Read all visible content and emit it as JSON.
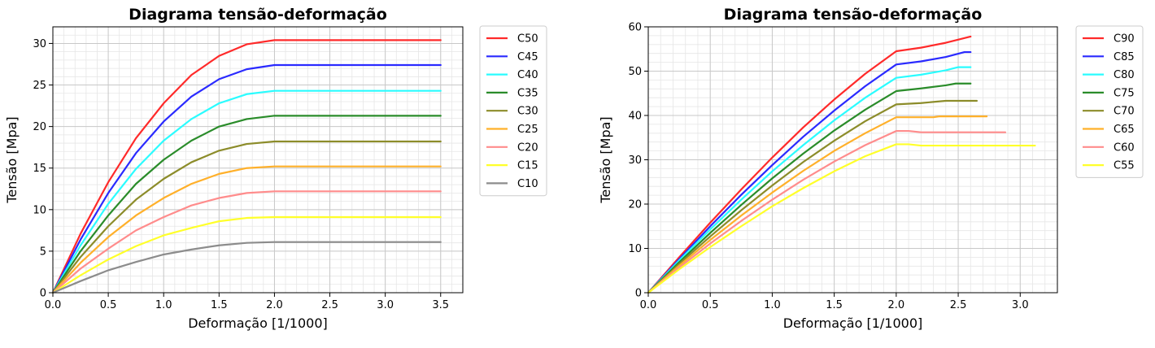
{
  "chart_data": [
    {
      "type": "line",
      "title": "Diagrama tensão-deformação",
      "xlabel": "Deformação [1/1000]",
      "ylabel": "Tensão [Mpa]",
      "xlim": [
        0,
        3.7
      ],
      "ylim": [
        0,
        32
      ],
      "xticks": [
        0.0,
        0.5,
        1.0,
        1.5,
        2.0,
        2.5,
        3.0,
        3.5
      ],
      "xtick_labels": [
        "0.0",
        "0.5",
        "1.0",
        "1.5",
        "2.0",
        "2.5",
        "3.0",
        "3.5"
      ],
      "yticks": [
        0,
        5,
        10,
        15,
        20,
        25,
        30
      ],
      "ytick_labels": [
        "0",
        "5",
        "10",
        "15",
        "20",
        "25",
        "30"
      ],
      "grid": "major and minor",
      "legend_position": "outside-right",
      "series": [
        {
          "name": "C50",
          "color": "#ff2a2a",
          "x": [
            0,
            0.25,
            0.5,
            0.75,
            1.0,
            1.25,
            1.5,
            1.75,
            2.0,
            3.5
          ],
          "y": [
            0,
            7.1,
            13.3,
            18.6,
            22.8,
            26.2,
            28.5,
            29.9,
            30.4,
            30.4
          ]
        },
        {
          "name": "C45",
          "color": "#2a2aff",
          "x": [
            0,
            0.25,
            0.5,
            0.75,
            1.0,
            1.25,
            1.5,
            1.75,
            2.0,
            3.5
          ],
          "y": [
            0,
            6.4,
            12.0,
            16.8,
            20.6,
            23.6,
            25.7,
            26.9,
            27.4,
            27.4
          ]
        },
        {
          "name": "C40",
          "color": "#2afcff",
          "x": [
            0,
            0.25,
            0.5,
            0.75,
            1.0,
            1.25,
            1.5,
            1.75,
            2.0,
            3.5
          ],
          "y": [
            0,
            5.7,
            10.7,
            14.9,
            18.3,
            20.9,
            22.8,
            23.9,
            24.3,
            24.3
          ]
        },
        {
          "name": "C35",
          "color": "#2a8c2a",
          "x": [
            0,
            0.25,
            0.5,
            0.75,
            1.0,
            1.25,
            1.5,
            1.75,
            2.0,
            3.5
          ],
          "y": [
            0,
            5.0,
            9.3,
            13.1,
            16.0,
            18.3,
            20.0,
            20.9,
            21.3,
            21.3
          ]
        },
        {
          "name": "C30",
          "color": "#8c8c2a",
          "x": [
            0,
            0.25,
            0.5,
            0.75,
            1.0,
            1.25,
            1.5,
            1.75,
            2.0,
            3.5
          ],
          "y": [
            0,
            4.3,
            8.0,
            11.2,
            13.7,
            15.7,
            17.1,
            17.9,
            18.2,
            18.2
          ]
        },
        {
          "name": "C25",
          "color": "#ffb02a",
          "x": [
            0,
            0.25,
            0.5,
            0.75,
            1.0,
            1.25,
            1.5,
            1.75,
            2.0,
            3.5
          ],
          "y": [
            0,
            3.6,
            6.7,
            9.3,
            11.4,
            13.1,
            14.3,
            15.0,
            15.2,
            15.2
          ]
        },
        {
          "name": "C20",
          "color": "#ff8c8c",
          "x": [
            0,
            0.25,
            0.5,
            0.75,
            1.0,
            1.25,
            1.5,
            1.75,
            2.0,
            3.5
          ],
          "y": [
            0,
            2.9,
            5.3,
            7.5,
            9.1,
            10.5,
            11.4,
            12.0,
            12.2,
            12.2
          ]
        },
        {
          "name": "C15",
          "color": "#ffff2a",
          "x": [
            0,
            0.25,
            0.5,
            0.75,
            1.0,
            1.25,
            1.5,
            1.75,
            2.0,
            3.5
          ],
          "y": [
            0,
            2.1,
            4.0,
            5.6,
            6.9,
            7.8,
            8.6,
            9.0,
            9.1,
            9.1
          ]
        },
        {
          "name": "C10",
          "color": "#8c8c8c",
          "x": [
            0,
            0.25,
            0.5,
            0.75,
            1.0,
            1.25,
            1.5,
            1.75,
            2.0,
            3.5
          ],
          "y": [
            0,
            1.4,
            2.7,
            3.7,
            4.6,
            5.2,
            5.7,
            6.0,
            6.1,
            6.1
          ]
        }
      ]
    },
    {
      "type": "line",
      "title": "Diagrama tensão-deformação",
      "xlabel": "Deformação [1/1000]",
      "ylabel": "Tensão [Mpa]",
      "xlim": [
        0,
        3.3
      ],
      "ylim": [
        0,
        60
      ],
      "xticks": [
        0.0,
        0.5,
        1.0,
        1.5,
        2.0,
        2.5,
        3.0
      ],
      "xtick_labels": [
        "0.0",
        "0.5",
        "1.0",
        "1.5",
        "2.0",
        "2.5",
        "3.0"
      ],
      "yticks": [
        0,
        10,
        20,
        30,
        40,
        50,
        60
      ],
      "ytick_labels": [
        "0",
        "10",
        "20",
        "30",
        "40",
        "50",
        "60"
      ],
      "grid": "major and minor",
      "legend_position": "outside-right",
      "series": [
        {
          "name": "C90",
          "color": "#ff2a2a",
          "x": [
            0,
            0.25,
            0.5,
            0.75,
            1.0,
            1.25,
            1.5,
            1.75,
            2.0,
            2.2,
            2.4,
            2.6
          ],
          "y": [
            0,
            8.0,
            15.8,
            23.3,
            30.5,
            37.3,
            43.6,
            49.4,
            54.5,
            55.3,
            56.4,
            57.8
          ]
        },
        {
          "name": "C85",
          "color": "#2a2aff",
          "x": [
            0,
            0.25,
            0.5,
            0.75,
            1.0,
            1.25,
            1.5,
            1.75,
            2.0,
            2.2,
            2.4,
            2.55,
            2.6
          ],
          "y": [
            0,
            7.6,
            15.0,
            22.1,
            28.8,
            35.2,
            41.1,
            46.6,
            51.5,
            52.2,
            53.2,
            54.3,
            54.3
          ]
        },
        {
          "name": "C80",
          "color": "#2afcff",
          "x": [
            0,
            0.25,
            0.5,
            0.75,
            1.0,
            1.25,
            1.5,
            1.75,
            2.0,
            2.2,
            2.4,
            2.5,
            2.6
          ],
          "y": [
            0,
            7.3,
            14.3,
            21.0,
            27.4,
            33.3,
            38.9,
            44.0,
            48.5,
            49.2,
            50.2,
            50.9,
            50.9
          ]
        },
        {
          "name": "C75",
          "color": "#2a8c2a",
          "x": [
            0,
            0.25,
            0.5,
            0.75,
            1.0,
            1.25,
            1.5,
            1.75,
            2.0,
            2.2,
            2.4,
            2.48,
            2.6
          ],
          "y": [
            0,
            6.9,
            13.5,
            19.8,
            25.8,
            31.4,
            36.6,
            41.3,
            45.5,
            46.1,
            46.8,
            47.2,
            47.2
          ]
        },
        {
          "name": "C70",
          "color": "#8c8c2a",
          "x": [
            0,
            0.25,
            0.5,
            0.75,
            1.0,
            1.25,
            1.5,
            1.75,
            2.0,
            2.2,
            2.4,
            2.65
          ],
          "y": [
            0,
            6.5,
            12.7,
            18.6,
            24.2,
            29.5,
            34.3,
            38.7,
            42.5,
            42.8,
            43.3,
            43.3
          ]
        },
        {
          "name": "C65",
          "color": "#ffb02a",
          "x": [
            0,
            0.25,
            0.5,
            0.75,
            1.0,
            1.25,
            1.5,
            1.75,
            2.0,
            2.3,
            2.35,
            2.73
          ],
          "y": [
            0,
            6.1,
            11.9,
            17.4,
            22.6,
            27.5,
            32.0,
            36.0,
            39.6,
            39.6,
            39.8,
            39.8
          ]
        },
        {
          "name": "C60",
          "color": "#ff8c8c",
          "x": [
            0,
            0.25,
            0.5,
            0.75,
            1.0,
            1.25,
            1.5,
            1.75,
            2.0,
            2.1,
            2.2,
            2.88
          ],
          "y": [
            0,
            5.7,
            11.1,
            16.2,
            21.0,
            25.5,
            29.6,
            33.3,
            36.5,
            36.5,
            36.2,
            36.2
          ]
        },
        {
          "name": "C55",
          "color": "#ffff2a",
          "x": [
            0,
            0.25,
            0.5,
            0.75,
            1.0,
            1.25,
            1.5,
            1.75,
            2.0,
            2.1,
            2.2,
            3.12
          ],
          "y": [
            0,
            5.3,
            10.3,
            15.0,
            19.5,
            23.6,
            27.4,
            30.8,
            33.5,
            33.5,
            33.2,
            33.2
          ]
        }
      ]
    }
  ]
}
